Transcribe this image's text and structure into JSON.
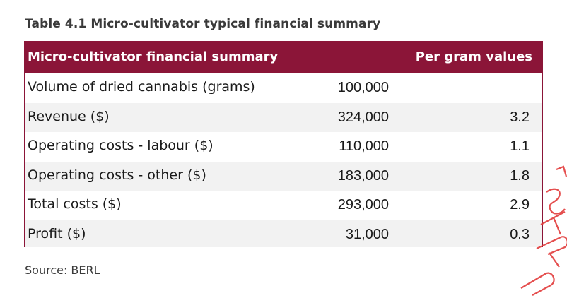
{
  "caption": "Table 4.1 Micro-cultivator typical financial summary",
  "table": {
    "headers": {
      "summary": "Micro-cultivator financial summary",
      "per_gram": "Per gram values"
    },
    "rows": [
      {
        "label": "Volume of dried cannabis (grams)",
        "value": "100,000",
        "per_gram": ""
      },
      {
        "label": "Revenue ($)",
        "value": "324,000",
        "per_gram": "3.2"
      },
      {
        "label": "Operating costs - labour ($)",
        "value": "110,000",
        "per_gram": "1.1"
      },
      {
        "label": "Operating costs - other ($)",
        "value": "183,000",
        "per_gram": "1.8"
      },
      {
        "label": "Total costs ($)",
        "value": "293,000",
        "per_gram": "2.9"
      },
      {
        "label": "Profit ($)",
        "value": "31,000",
        "per_gram": "0.3"
      }
    ]
  },
  "source": "Source: BERL",
  "colors": {
    "header_bg": "#8b1538",
    "shaded_row": "#f2f2f2",
    "watermark": "#e23b3b"
  }
}
